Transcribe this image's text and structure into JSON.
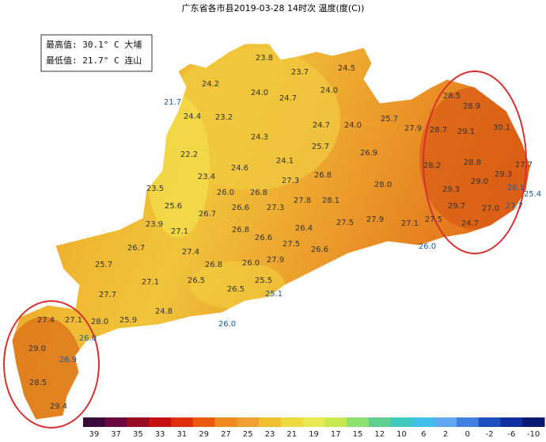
{
  "title": "广东省各市县2019-03-28 14时次 温度(度(C))",
  "stats": {
    "max": "最高值: 30.1° C 大埔",
    "min": "最低值: 21.7° C 连山"
  },
  "labels": [
    "23.8",
    "23.7",
    "24.5",
    "24.2",
    "24.0",
    "24.7",
    "24.0",
    "21.7",
    "24.4",
    "23.2",
    "24.7",
    "24.0",
    "25.7",
    "28.5",
    "28.9",
    "27.9",
    "28.7",
    "29.1",
    "30.1",
    "24.3",
    "25.7",
    "26.9",
    "22.2",
    "24.1",
    "24.6",
    "23.4",
    "26.8",
    "27.3",
    "28.2",
    "28.8",
    "29.3",
    "27.7",
    "23.5",
    "26.0",
    "26.8",
    "28.0",
    "29.0",
    "29.3",
    "26.1",
    "25.4",
    "25.6",
    "26.6",
    "27.3",
    "27.8",
    "28.1",
    "27.7",
    "29.7",
    "27.0",
    "26.7",
    "23.9",
    "27.1",
    "26.8",
    "26.4",
    "27.5",
    "27.9",
    "27.1",
    "27.5",
    "24.7",
    "26.6",
    "26.7",
    "27.4",
    "27.5",
    "26.6",
    "26.0",
    "25.7",
    "26.8",
    "26.0",
    "27.9",
    "27.1",
    "26.5",
    "25.5",
    "27.7",
    "26.5",
    "25.1",
    "24.8",
    "27.4",
    "27.1",
    "28.0",
    "25.9",
    "26.0",
    "26.0",
    "29.0",
    "26.9",
    "28.5",
    "29.4"
  ],
  "legend": {
    "ticks": [
      "39",
      "37",
      "35",
      "33",
      "31",
      "29",
      "27",
      "25",
      "23",
      "21",
      "19",
      "17",
      "15",
      "12",
      "10",
      "6",
      "2",
      "0",
      "-2",
      "-6",
      "-10"
    ],
    "colors": [
      "#3a0a3a",
      "#6a0a40",
      "#9a0a20",
      "#c81010",
      "#e03010",
      "#ec5a10",
      "#f08a20",
      "#f0a030",
      "#f0c030",
      "#f0d840",
      "#e8e850",
      "#c8e850",
      "#90e070",
      "#60d090",
      "#40c8c0",
      "#40c0e8",
      "#60a8f0",
      "#4080e0",
      "#2050c0",
      "#1030a0",
      "#0a1a70"
    ]
  }
}
